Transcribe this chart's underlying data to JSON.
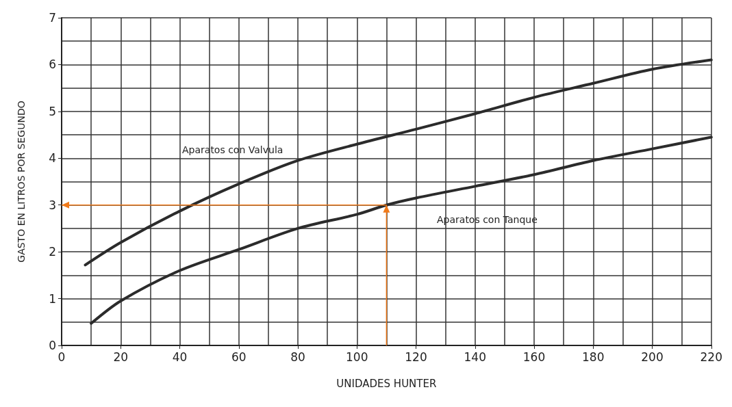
{
  "chart_data": {
    "type": "line",
    "xlabel": "UNIDADES HUNTER",
    "ylabel": "GASTO EN LITROS POR SEGUNDO",
    "xlim": [
      0,
      220
    ],
    "xticks": [
      0,
      20,
      40,
      60,
      80,
      100,
      120,
      140,
      160,
      180,
      200,
      220
    ],
    "ylim": [
      0,
      7
    ],
    "yticks": [
      0,
      1,
      2,
      3,
      4,
      5,
      6,
      7
    ],
    "grid": true,
    "line_style": "solid",
    "series": [
      {
        "color": "#2b2b2b",
        "x": [
          8,
          20,
          40,
          60,
          80,
          100,
          120,
          140,
          160,
          180,
          200,
          220
        ],
        "values": [
          1.72,
          2.2,
          2.87,
          3.45,
          3.95,
          4.3,
          4.62,
          4.95,
          5.3,
          5.6,
          5.9,
          6.1
        ]
      },
      {
        "color": "#2b2b2b",
        "x": [
          10,
          20,
          40,
          60,
          80,
          100,
          110,
          120,
          140,
          160,
          180,
          200,
          220
        ],
        "values": [
          0.47,
          0.95,
          1.6,
          2.05,
          2.5,
          2.8,
          3.0,
          3.15,
          3.4,
          3.65,
          3.95,
          4.2,
          4.45
        ]
      }
    ],
    "annotations": [
      "Aparatos con Valvula",
      "Aparatos con Tanque"
    ]
  }
}
